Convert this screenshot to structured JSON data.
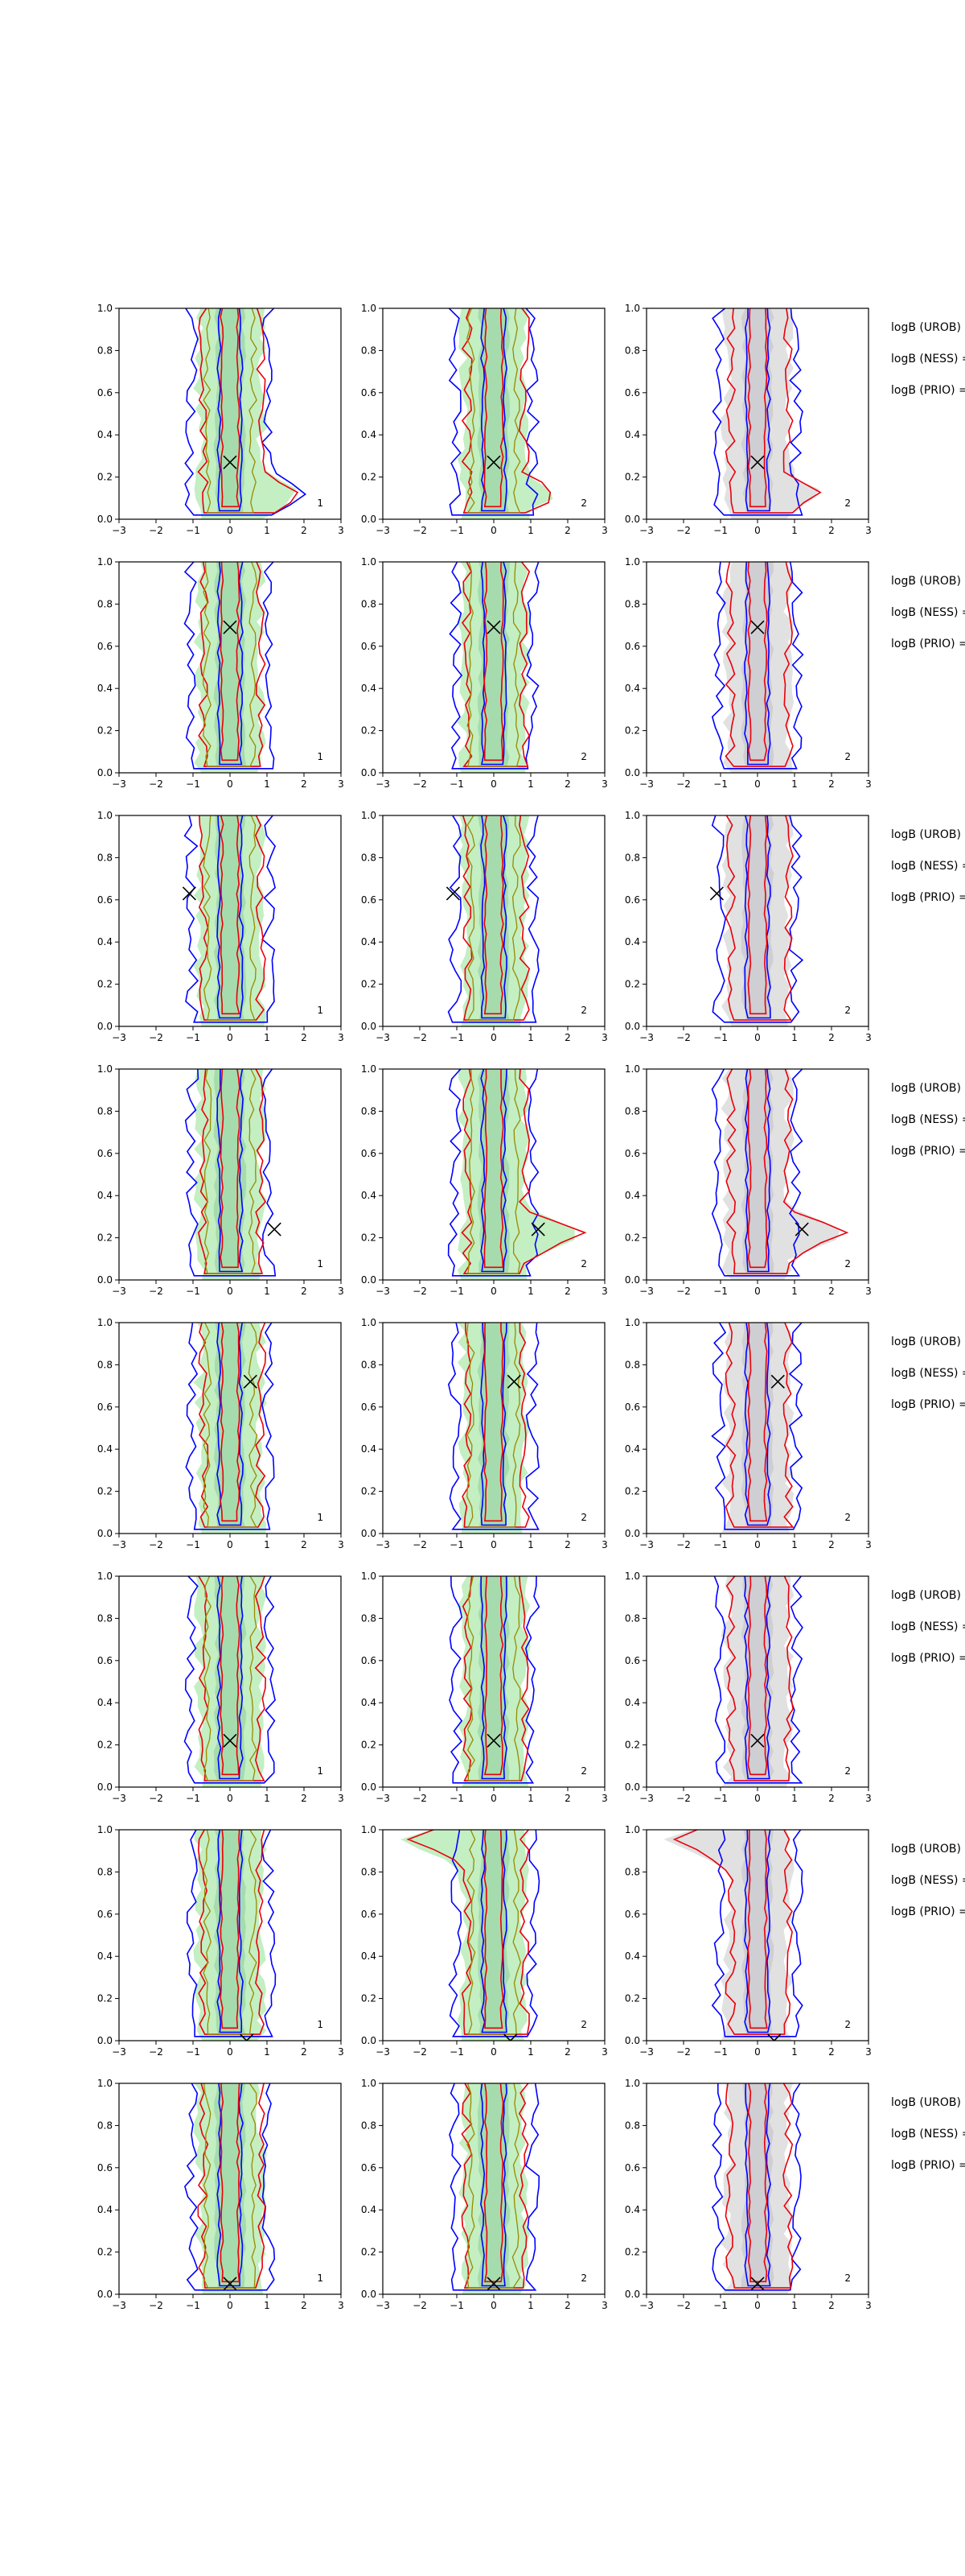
{
  "figure": {
    "rows": 8,
    "cols": 3,
    "panel_labels": [
      "1",
      "2",
      "2"
    ],
    "side_labels": [
      "logB (UROB) =",
      "logB (NESS) =",
      "logB (PRIO) ="
    ]
  },
  "colors": {
    "blue_contour": "#0000ff",
    "red_contour": "#e8000b",
    "olive_contour": "#9a8a00",
    "green_fill": "#b9ecb9",
    "gray_fill": "#dcdcdc",
    "axes": "#000000"
  },
  "chart_data": {
    "type": "contour",
    "description_layout": "8 rows x 3 columns of density-contour panels",
    "xlim": [
      -3,
      3
    ],
    "ylim": [
      0,
      1
    ],
    "xticks": [
      -3,
      -2,
      -1,
      0,
      1,
      2,
      3
    ],
    "yticks": [
      0.0,
      0.2,
      0.4,
      0.6,
      0.8,
      1.0
    ],
    "xtick_labels": [
      "−3",
      "−2",
      "−1",
      "0",
      "1",
      "2",
      "3"
    ],
    "ytick_labels": [
      "0.0",
      "0.2",
      "0.4",
      "0.6",
      "0.8",
      "1.0"
    ],
    "markers": [
      {
        "row": 1,
        "x": 0.0,
        "y": 0.27
      },
      {
        "row": 2,
        "x": 0.0,
        "y": 0.69
      },
      {
        "row": 3,
        "x": -1.1,
        "y": 0.63
      },
      {
        "row": 4,
        "x": 1.2,
        "y": 0.24
      },
      {
        "row": 5,
        "x": 0.55,
        "y": 0.72
      },
      {
        "row": 6,
        "x": 0.0,
        "y": 0.22
      },
      {
        "row": 7,
        "x": 0.45,
        "y": 0.0
      },
      {
        "row": 8,
        "x": 0.0,
        "y": 0.05
      }
    ]
  }
}
